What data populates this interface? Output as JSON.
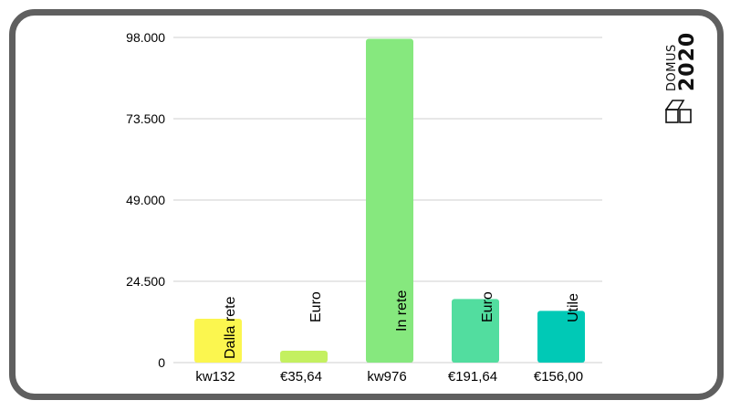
{
  "logo": {
    "line1": "DOMUS",
    "line2": "2020"
  },
  "colors": {
    "frame": "#5f5f5f",
    "grid": "#cfcfcf",
    "text": "#000000"
  },
  "chart_data": {
    "type": "bar",
    "categories": [
      "kw132",
      "€35,64",
      "kw976",
      "€191,64",
      "€156,00"
    ],
    "bar_labels": [
      "Dalla rete",
      "Euro",
      "In rete",
      "Euro",
      "Utile"
    ],
    "values": [
      13200,
      3564,
      97600,
      19164,
      15600
    ],
    "bar_colors": [
      "#fbf64f",
      "#c4f060",
      "#86e87e",
      "#52dd9f",
      "#00c9b6"
    ],
    "y_ticks": [
      0,
      24500,
      49000,
      73500,
      98000
    ],
    "y_tick_labels": [
      "0",
      "24.500",
      "49.000",
      "73.500",
      "98.000"
    ],
    "ylim": [
      0,
      98000
    ],
    "grid": true
  }
}
